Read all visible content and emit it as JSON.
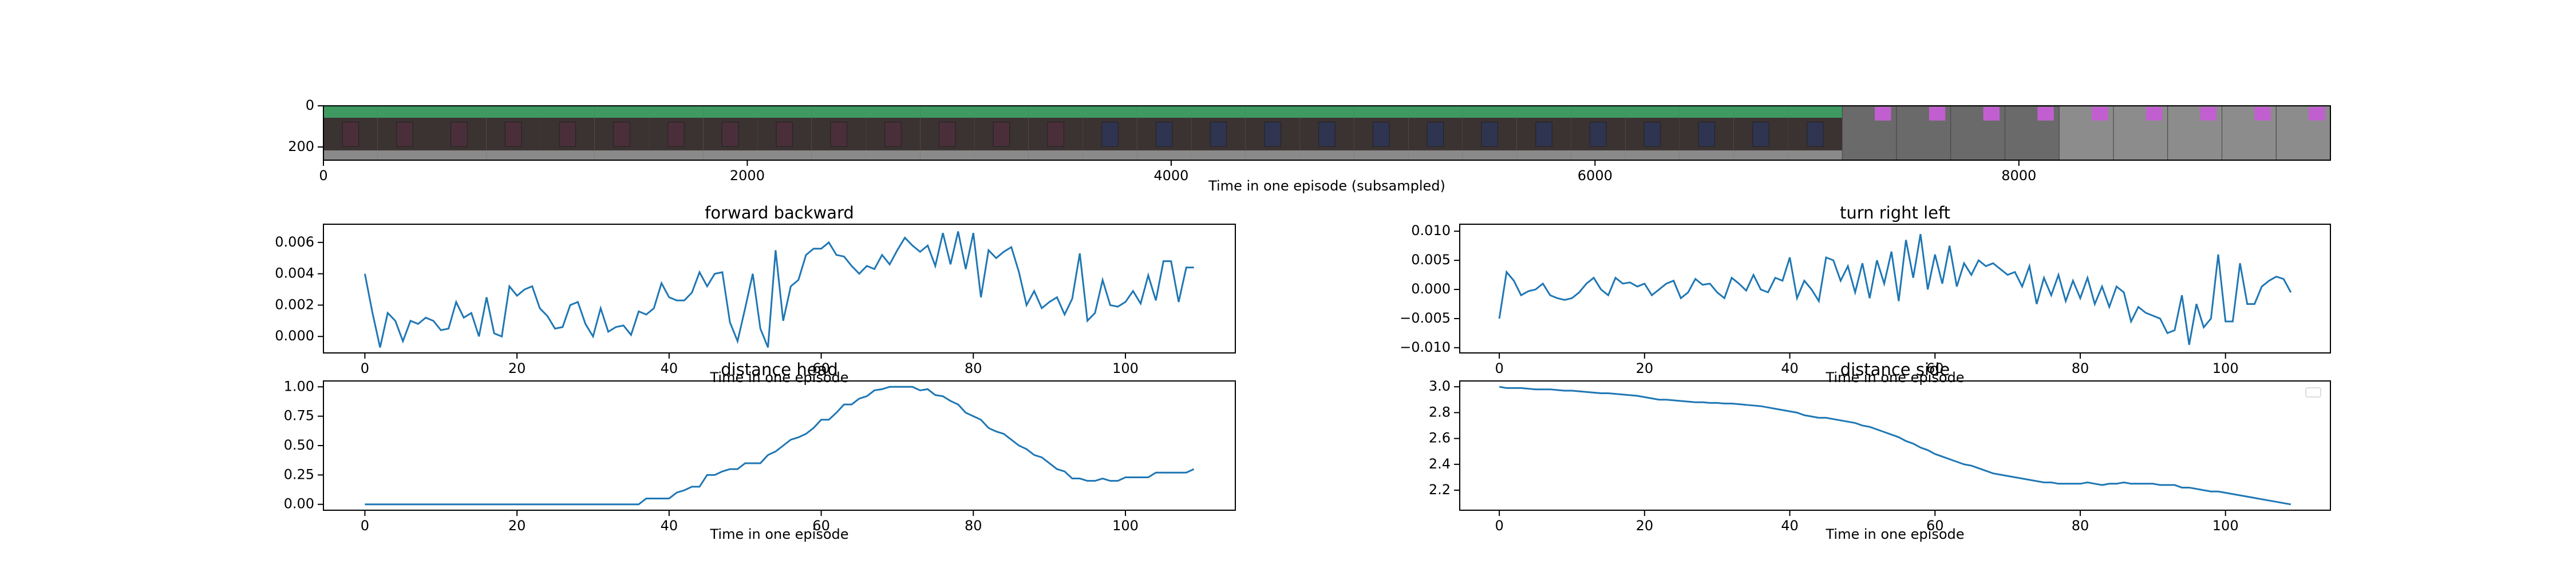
{
  "chart_data": [
    {
      "type": "image",
      "xlabel": "Time in one episode (subsampled)",
      "xlim": [
        0,
        9470
      ],
      "ylim": [
        264,
        0
      ],
      "xticks": [
        0,
        2000,
        4000,
        6000,
        8000
      ],
      "yticks": [
        0,
        200
      ]
    },
    {
      "type": "line",
      "title": "forward backward",
      "xlabel": "Time in one episode",
      "color": "#1f77b4",
      "x": [
        0,
        1,
        2,
        3,
        4,
        5,
        6,
        7,
        8,
        9,
        10,
        11,
        12,
        13,
        14,
        15,
        16,
        17,
        18,
        19,
        20,
        21,
        22,
        23,
        24,
        25,
        26,
        27,
        28,
        29,
        30,
        31,
        32,
        33,
        34,
        35,
        36,
        37,
        38,
        39,
        40,
        41,
        42,
        43,
        44,
        45,
        46,
        47,
        48,
        49,
        50,
        51,
        52,
        53,
        54,
        55,
        56,
        57,
        58,
        59,
        60,
        61,
        62,
        63,
        64,
        65,
        66,
        67,
        68,
        69,
        70,
        71,
        72,
        73,
        74,
        75,
        76,
        77,
        78,
        79,
        80,
        81,
        82,
        83,
        84,
        85,
        86,
        87,
        88,
        89,
        90,
        91,
        92,
        93,
        94,
        95,
        96,
        97,
        98,
        99,
        100,
        101,
        102,
        103,
        104,
        105,
        106,
        107,
        108,
        109
      ],
      "values": [
        0.004,
        0.0015,
        -0.0007,
        0.0015,
        0.001,
        -0.0003,
        0.001,
        0.0008,
        0.0012,
        0.001,
        0.0004,
        0.0005,
        0.0022,
        0.0012,
        0.0015,
        0.0,
        0.0025,
        0.0002,
        0.0,
        0.0032,
        0.0026,
        0.003,
        0.0032,
        0.0018,
        0.0013,
        0.0005,
        0.0006,
        0.002,
        0.0022,
        0.0008,
        0.0,
        0.0018,
        0.0003,
        0.0006,
        0.0007,
        0.0001,
        0.0016,
        0.0014,
        0.0018,
        0.0034,
        0.0025,
        0.0023,
        0.0023,
        0.0028,
        0.0041,
        0.0032,
        0.004,
        0.0041,
        0.0009,
        -0.0003,
        0.0018,
        0.004,
        0.0005,
        -0.0007,
        0.0055,
        0.001,
        0.0032,
        0.0036,
        0.0052,
        0.0056,
        0.0056,
        0.006,
        0.0052,
        0.0051,
        0.0045,
        0.004,
        0.0045,
        0.0043,
        0.0052,
        0.0046,
        0.0055,
        0.0063,
        0.0058,
        0.0054,
        0.0058,
        0.0045,
        0.0066,
        0.0046,
        0.0067,
        0.0043,
        0.0066,
        0.0025,
        0.0055,
        0.005,
        0.0054,
        0.0057,
        0.0041,
        0.002,
        0.0029,
        0.0018,
        0.0022,
        0.0025,
        0.0014,
        0.0024,
        0.0053,
        0.001,
        0.0015,
        0.0036,
        0.002,
        0.0019,
        0.0022,
        0.0029,
        0.0021,
        0.0039,
        0.0023,
        0.0048,
        0.0048,
        0.0022,
        0.0044,
        0.0044
      ],
      "xlim": [
        -5.45,
        114.45
      ],
      "xticks": [
        0,
        20,
        40,
        60,
        80,
        100
      ],
      "ylim": [
        -0.00105,
        0.00716
      ],
      "yticks": [
        {
          "value": 0,
          "label": "0.000"
        },
        0.002,
        0.004,
        0.006
      ]
    },
    {
      "type": "line",
      "title": "turn right left",
      "xlabel": "Time in one episode",
      "color": "#1f77b4",
      "x": [
        0,
        1,
        2,
        3,
        4,
        5,
        6,
        7,
        8,
        9,
        10,
        11,
        12,
        13,
        14,
        15,
        16,
        17,
        18,
        19,
        20,
        21,
        22,
        23,
        24,
        25,
        26,
        27,
        28,
        29,
        30,
        31,
        32,
        33,
        34,
        35,
        36,
        37,
        38,
        39,
        40,
        41,
        42,
        43,
        44,
        45,
        46,
        47,
        48,
        49,
        50,
        51,
        52,
        53,
        54,
        55,
        56,
        57,
        58,
        59,
        60,
        61,
        62,
        63,
        64,
        65,
        66,
        67,
        68,
        69,
        70,
        71,
        72,
        73,
        74,
        75,
        76,
        77,
        78,
        79,
        80,
        81,
        82,
        83,
        84,
        85,
        86,
        87,
        88,
        89,
        90,
        91,
        92,
        93,
        94,
        95,
        96,
        97,
        98,
        99,
        100,
        101,
        102,
        103,
        104,
        105,
        106,
        107,
        108,
        109
      ],
      "values": [
        -0.005,
        0.003,
        0.0015,
        -0.001,
        -0.0003,
        0.0,
        0.001,
        -0.001,
        -0.0015,
        -0.0018,
        -0.0015,
        -0.0005,
        0.001,
        0.002,
        0.0,
        -0.001,
        0.002,
        0.001,
        0.0012,
        0.0005,
        0.001,
        -0.001,
        0.0,
        0.001,
        0.0015,
        -0.0015,
        -0.0005,
        0.0018,
        0.0008,
        0.001,
        -0.0005,
        -0.0015,
        0.002,
        0.001,
        -0.0002,
        0.0025,
        0.0,
        -0.0005,
        0.002,
        0.0015,
        0.0055,
        -0.0015,
        0.0015,
        0.0,
        -0.002,
        0.0055,
        0.005,
        0.0015,
        0.004,
        -0.0005,
        0.0045,
        -0.0015,
        0.005,
        0.001,
        0.0065,
        -0.002,
        0.0085,
        0.002,
        0.0095,
        0.0,
        0.006,
        0.001,
        0.0075,
        0.0005,
        0.0045,
        0.0025,
        0.005,
        0.004,
        0.0045,
        0.0035,
        0.0025,
        0.003,
        0.0005,
        0.004,
        -0.0025,
        0.002,
        -0.001,
        0.0025,
        -0.002,
        0.0015,
        -0.0015,
        0.002,
        -0.0025,
        0.0005,
        -0.003,
        0.0005,
        -0.0005,
        -0.0055,
        -0.003,
        -0.004,
        -0.0045,
        -0.005,
        -0.0075,
        -0.007,
        -0.001,
        -0.0095,
        -0.0025,
        -0.0065,
        -0.005,
        0.006,
        -0.0055,
        -0.0055,
        0.0045,
        -0.0025,
        -0.0025,
        0.0005,
        0.0015,
        0.0022,
        0.0018,
        -0.0005
      ],
      "xlim": [
        -5.45,
        114.45
      ],
      "xticks": [
        0,
        20,
        40,
        60,
        80,
        100
      ],
      "ylim": [
        -0.0109,
        0.0112
      ],
      "yticks": [
        {
          "value": -0.01,
          "label": "−0.010"
        },
        {
          "value": -0.005,
          "label": "−0.005"
        },
        {
          "value": 0,
          "label": "0.000"
        },
        0.005,
        {
          "value": 0.01,
          "label": "0.010"
        }
      ]
    },
    {
      "type": "line",
      "title": "distance head",
      "xlabel": "Time in one episode",
      "color": "#1f77b4",
      "x": [
        0,
        1,
        2,
        3,
        4,
        5,
        6,
        7,
        8,
        9,
        10,
        11,
        12,
        13,
        14,
        15,
        16,
        17,
        18,
        19,
        20,
        21,
        22,
        23,
        24,
        25,
        26,
        27,
        28,
        29,
        30,
        31,
        32,
        33,
        34,
        35,
        36,
        37,
        38,
        39,
        40,
        41,
        42,
        43,
        44,
        45,
        46,
        47,
        48,
        49,
        50,
        51,
        52,
        53,
        54,
        55,
        56,
        57,
        58,
        59,
        60,
        61,
        62,
        63,
        64,
        65,
        66,
        67,
        68,
        69,
        70,
        71,
        72,
        73,
        74,
        75,
        76,
        77,
        78,
        79,
        80,
        81,
        82,
        83,
        84,
        85,
        86,
        87,
        88,
        89,
        90,
        91,
        92,
        93,
        94,
        95,
        96,
        97,
        98,
        99,
        100,
        101,
        102,
        103,
        104,
        105,
        106,
        107,
        108,
        109
      ],
      "values": [
        0,
        0,
        0,
        0,
        0,
        0,
        0,
        0,
        0,
        0,
        0,
        0,
        0,
        0,
        0,
        0,
        0,
        0,
        0,
        0,
        0,
        0,
        0,
        0,
        0,
        0,
        0,
        0,
        0,
        0,
        0,
        0,
        0,
        0,
        0,
        0,
        0,
        0.05,
        0.05,
        0.05,
        0.05,
        0.1,
        0.12,
        0.15,
        0.15,
        0.25,
        0.25,
        0.28,
        0.3,
        0.3,
        0.35,
        0.35,
        0.35,
        0.42,
        0.45,
        0.5,
        0.55,
        0.57,
        0.6,
        0.65,
        0.72,
        0.72,
        0.78,
        0.85,
        0.85,
        0.9,
        0.92,
        0.97,
        0.98,
        1.0,
        1.0,
        1.0,
        1.0,
        0.97,
        0.98,
        0.93,
        0.92,
        0.88,
        0.85,
        0.78,
        0.75,
        0.72,
        0.65,
        0.62,
        0.6,
        0.55,
        0.5,
        0.47,
        0.42,
        0.4,
        0.35,
        0.3,
        0.28,
        0.22,
        0.22,
        0.2,
        0.2,
        0.22,
        0.2,
        0.2,
        0.23,
        0.23,
        0.23,
        0.23,
        0.27,
        0.27,
        0.27,
        0.27,
        0.27,
        0.3
      ],
      "xlim": [
        -5.45,
        114.45
      ],
      "xticks": [
        0,
        20,
        40,
        60,
        80,
        100
      ],
      "ylim": [
        -0.05,
        1.05
      ],
      "yticks": [
        {
          "value": 0,
          "label": "0.00"
        },
        0.25,
        {
          "value": 0.5,
          "label": "0.50"
        },
        0.75,
        {
          "value": 1,
          "label": "1.00"
        }
      ]
    },
    {
      "type": "line",
      "title": "distance side",
      "xlabel": "Time in one episode",
      "color": "#1f77b4",
      "x": [
        0,
        1,
        2,
        3,
        4,
        5,
        6,
        7,
        8,
        9,
        10,
        11,
        12,
        13,
        14,
        15,
        16,
        17,
        18,
        19,
        20,
        21,
        22,
        23,
        24,
        25,
        26,
        27,
        28,
        29,
        30,
        31,
        32,
        33,
        34,
        35,
        36,
        37,
        38,
        39,
        40,
        41,
        42,
        43,
        44,
        45,
        46,
        47,
        48,
        49,
        50,
        51,
        52,
        53,
        54,
        55,
        56,
        57,
        58,
        59,
        60,
        61,
        62,
        63,
        64,
        65,
        66,
        67,
        68,
        69,
        70,
        71,
        72,
        73,
        74,
        75,
        76,
        77,
        78,
        79,
        80,
        81,
        82,
        83,
        84,
        85,
        86,
        87,
        88,
        89,
        90,
        91,
        92,
        93,
        94,
        95,
        96,
        97,
        98,
        99,
        100,
        101,
        102,
        103,
        104,
        105,
        106,
        107,
        108,
        109
      ],
      "values": [
        3.0,
        2.99,
        2.99,
        2.99,
        2.985,
        2.98,
        2.98,
        2.98,
        2.975,
        2.97,
        2.97,
        2.965,
        2.96,
        2.955,
        2.95,
        2.95,
        2.945,
        2.94,
        2.935,
        2.93,
        2.92,
        2.91,
        2.9,
        2.9,
        2.895,
        2.89,
        2.885,
        2.88,
        2.88,
        2.875,
        2.875,
        2.87,
        2.87,
        2.865,
        2.86,
        2.855,
        2.85,
        2.84,
        2.83,
        2.82,
        2.81,
        2.8,
        2.78,
        2.77,
        2.76,
        2.76,
        2.75,
        2.74,
        2.73,
        2.72,
        2.7,
        2.69,
        2.67,
        2.65,
        2.63,
        2.61,
        2.58,
        2.56,
        2.53,
        2.51,
        2.48,
        2.46,
        2.44,
        2.42,
        2.4,
        2.39,
        2.37,
        2.35,
        2.33,
        2.32,
        2.31,
        2.3,
        2.29,
        2.28,
        2.27,
        2.26,
        2.26,
        2.25,
        2.25,
        2.25,
        2.25,
        2.26,
        2.25,
        2.24,
        2.25,
        2.25,
        2.26,
        2.25,
        2.25,
        2.25,
        2.25,
        2.24,
        2.24,
        2.24,
        2.22,
        2.22,
        2.21,
        2.2,
        2.19,
        2.19,
        2.18,
        2.17,
        2.16,
        2.15,
        2.14,
        2.13,
        2.12,
        2.11,
        2.1,
        2.09
      ],
      "xlim": [
        -5.45,
        114.45
      ],
      "xticks": [
        0,
        20,
        40,
        60,
        80,
        100
      ],
      "ylim": [
        2.045,
        3.045
      ],
      "yticks": [
        2.2,
        2.4,
        2.6,
        2.8,
        {
          "value": 3.0,
          "label": "3.0"
        }
      ]
    }
  ]
}
